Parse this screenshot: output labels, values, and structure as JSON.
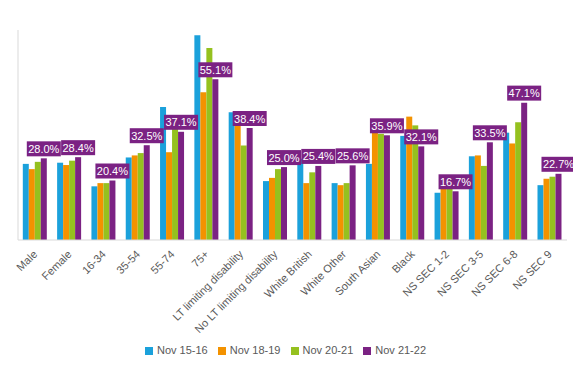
{
  "chart_data": {
    "type": "bar",
    "categories": [
      "Male",
      "Female",
      "16-34",
      "35-54",
      "55-74",
      "75+",
      "LT limiting disability",
      "No LT limiting disability",
      "White British",
      "White Other",
      "South Asian",
      "Black",
      "NS SEC 1-2",
      "NS SEC 3-5",
      "NS SEC 6-8",
      "NS SEC 9"
    ],
    "series": [
      {
        "name": "Nov 15-16",
        "color": "#1ba1db",
        "values": [
          26.1,
          26.5,
          18.4,
          28.3,
          45.6,
          70.2,
          43.8,
          20.2,
          27.9,
          19.5,
          26.1,
          35.7,
          16.2,
          28.7,
          36.8,
          18.8
        ]
      },
      {
        "name": "Nov 18-19",
        "color": "#f39200",
        "values": [
          24.3,
          25.7,
          19.5,
          29.0,
          30.1,
          50.7,
          41.5,
          21.3,
          19.5,
          18.8,
          36.8,
          42.3,
          18.4,
          29.0,
          33.1,
          21.0
        ]
      },
      {
        "name": "Nov 20-21",
        "color": "#95c11f",
        "values": [
          26.8,
          27.2,
          19.5,
          29.8,
          38.2,
          65.8,
          32.4,
          24.3,
          23.2,
          19.5,
          36.4,
          39.3,
          18.4,
          25.4,
          40.4,
          21.7
        ]
      },
      {
        "name": "Nov 21-22",
        "color": "#7b2283",
        "values": [
          28.0,
          28.4,
          20.4,
          32.5,
          37.1,
          55.1,
          38.4,
          25.0,
          25.4,
          25.6,
          35.9,
          32.1,
          16.7,
          33.5,
          47.1,
          22.7
        ],
        "data_labels": true,
        "value_labels": [
          "28.0%",
          "28.4%",
          "20.4%",
          "32.5%",
          "37.1%",
          "55.1%",
          "38.4%",
          "25.0%",
          "25.4%",
          "25.6%",
          "35.9%",
          "32.1%",
          "16.7%",
          "33.5%",
          "47.1%",
          "22.7%"
        ]
      }
    ],
    "ylim": [
      0,
      72
    ],
    "tick_labels": "x",
    "grid": false,
    "legend": "bottom"
  }
}
